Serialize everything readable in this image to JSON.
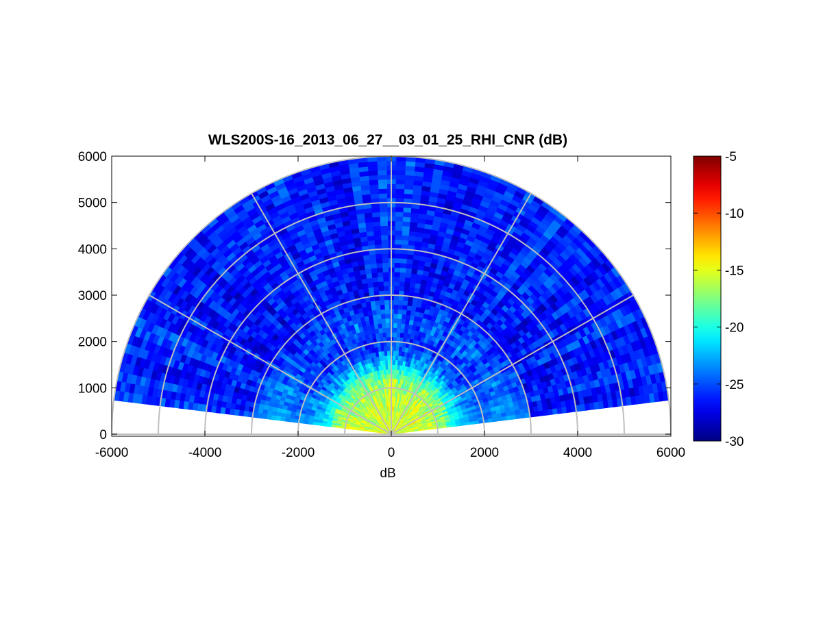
{
  "chart_data": {
    "type": "heatmap",
    "subtype": "polar-rhi-scan",
    "title": "WLS200S-16_2013_06_27__03_01_25_RHI_CNR (dB)",
    "xlabel": "dB",
    "ylabel": "",
    "xlim": [
      -6000,
      6000
    ],
    "ylim": [
      0,
      6000
    ],
    "x_ticks": [
      -6000,
      -4000,
      -2000,
      0,
      2000,
      4000,
      6000
    ],
    "y_ticks": [
      0,
      1000,
      2000,
      3000,
      4000,
      5000,
      6000
    ],
    "grid": "polar",
    "polar_grid": {
      "ring_radii": [
        1000,
        2000,
        3000,
        4000,
        5000,
        6000
      ],
      "spoke_angles_deg": [
        0,
        30,
        60,
        90,
        120,
        150,
        180
      ]
    },
    "scan": {
      "elevation_range_deg": [
        7,
        173
      ],
      "max_range": 6000,
      "range_gate": 100
    },
    "colorbar": {
      "colormap": "jet",
      "clim": [
        -30,
        -5
      ],
      "ticks": [
        -5,
        -10,
        -15,
        -20,
        -25,
        -30
      ],
      "location": "right"
    },
    "cnr_profile_db": [
      {
        "range": 0,
        "cnr": -15
      },
      {
        "range": 400,
        "cnr": -15.5
      },
      {
        "range": 900,
        "cnr": -16
      },
      {
        "range": 1200,
        "cnr": -17.5
      },
      {
        "range": 1600,
        "cnr": -23
      },
      {
        "range": 2000,
        "cnr": -26
      },
      {
        "range": 2400,
        "cnr": -24.5
      },
      {
        "range": 3000,
        "cnr": -26.5
      },
      {
        "range": 6000,
        "cnr": -26
      }
    ],
    "low_elevation_enhancement": {
      "elevation_below_deg": 40,
      "max_range": 3000,
      "cnr": -21.5
    }
  },
  "colors": {
    "grid_line": "#bfbfbf",
    "axes": "#000000",
    "background": "#ffffff"
  }
}
